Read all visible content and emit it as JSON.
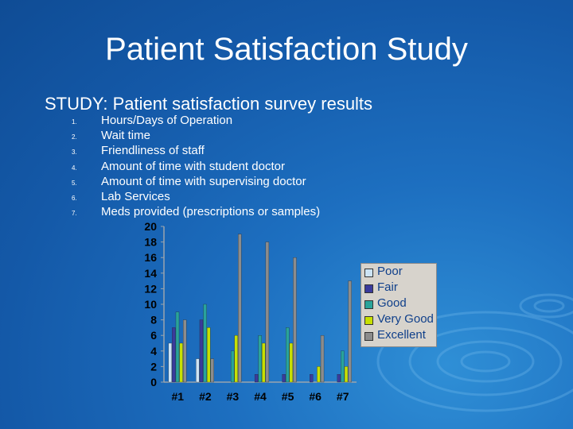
{
  "title": "Patient Satisfaction Study",
  "subtitle": "STUDY:  Patient satisfaction survey results",
  "items": [
    {
      "num": "1.",
      "text": "Hours/Days of Operation"
    },
    {
      "num": "2.",
      "text": "Wait time"
    },
    {
      "num": "3.",
      "text": "Friendliness of staff"
    },
    {
      "num": "4.",
      "text": "Amount of time with student doctor"
    },
    {
      "num": "5.",
      "text": "Amount of time with supervising doctor"
    },
    {
      "num": "6.",
      "text": "Lab Services"
    },
    {
      "num": "7.",
      "text": "Meds provided (prescriptions or samples)"
    }
  ],
  "chart_data": {
    "type": "bar",
    "categories": [
      "#1",
      "#2",
      "#3",
      "#4",
      "#5",
      "#6",
      "#7"
    ],
    "series": [
      {
        "name": "Poor",
        "color": "#cde4f5",
        "values": [
          5,
          3,
          0,
          0,
          0,
          0,
          0
        ]
      },
      {
        "name": "Fair",
        "color": "#3a3a9c",
        "values": [
          7,
          8,
          0,
          1,
          1,
          1,
          1
        ]
      },
      {
        "name": "Good",
        "color": "#2aa39a",
        "values": [
          9,
          10,
          4,
          6,
          7,
          0,
          4
        ]
      },
      {
        "name": "Very Good",
        "color": "#c8e000",
        "values": [
          5,
          7,
          6,
          5,
          5,
          2,
          2
        ]
      },
      {
        "name": "Excellent",
        "color": "#8c8c8c",
        "values": [
          8,
          3,
          19,
          18,
          16,
          6,
          13
        ]
      }
    ],
    "ylim": [
      0,
      20
    ],
    "yticks": [
      0,
      2,
      4,
      6,
      8,
      10,
      12,
      14,
      16,
      18,
      20
    ],
    "grid": false,
    "legend_position": "right"
  }
}
